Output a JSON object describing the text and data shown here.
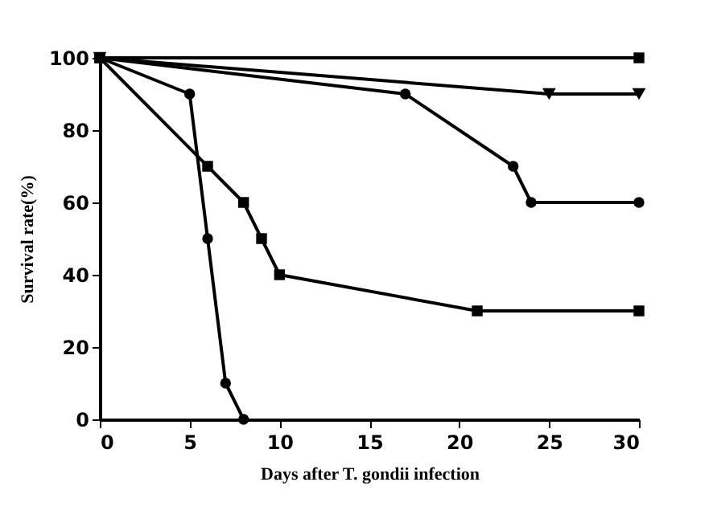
{
  "chart_data": {
    "type": "line",
    "xlabel": "Days after T. gondii infection",
    "ylabel": "Survival rate(%)",
    "xlim": [
      0,
      30
    ],
    "xticks": [
      0,
      5,
      10,
      15,
      20,
      25,
      30
    ],
    "ylim": [
      0,
      100
    ],
    "yticks": [
      0,
      20,
      40,
      60,
      80,
      100
    ],
    "grid": false,
    "line_style": "solid",
    "series": [
      {
        "color": "#000000",
        "marker": "square",
        "x": [
          0,
          30
        ],
        "values": [
          100,
          100
        ]
      },
      {
        "color": "#000000",
        "marker": "square",
        "x": [
          0,
          6,
          8,
          9,
          10,
          21,
          30
        ],
        "values": [
          100,
          70,
          60,
          50,
          40,
          30,
          30
        ]
      },
      {
        "color": "#000000",
        "marker": "triangle",
        "x": [
          0,
          25,
          30
        ],
        "values": [
          100,
          90,
          90
        ]
      },
      {
        "color": "#000000",
        "marker": "circle",
        "x": [
          0,
          17,
          23,
          24,
          30
        ],
        "values": [
          100,
          90,
          70,
          60,
          60
        ]
      },
      {
        "color": "#000000",
        "marker": "circle",
        "x": [
          0,
          5,
          6,
          7,
          8
        ],
        "values": [
          100,
          90,
          50,
          10,
          0
        ]
      }
    ]
  }
}
